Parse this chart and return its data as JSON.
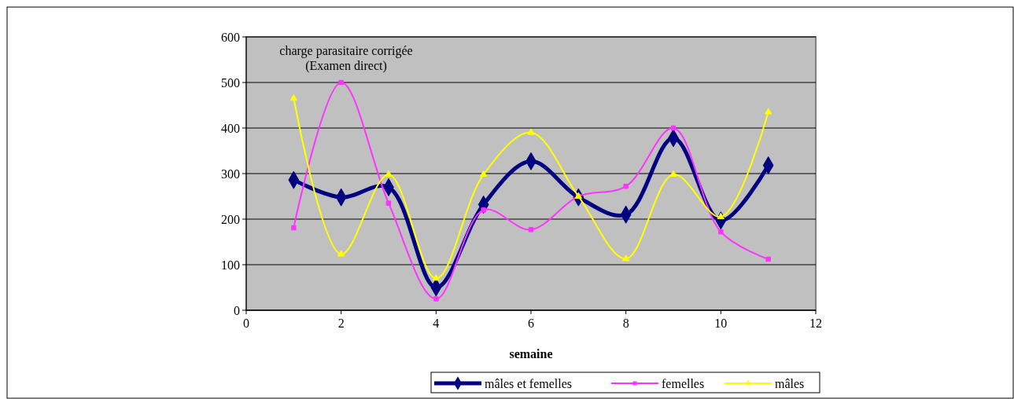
{
  "chart_data": {
    "type": "line",
    "title": "charge parasitaire corrigée\n(Examen direct)",
    "xlabel": "semaine",
    "x": [
      1,
      2,
      3,
      4,
      5,
      6,
      7,
      8,
      9,
      10,
      11
    ],
    "xlim": [
      0,
      12
    ],
    "xticks": [
      0,
      2,
      4,
      6,
      8,
      10,
      12
    ],
    "ylim": [
      0,
      600
    ],
    "yticks": [
      0,
      100,
      200,
      300,
      400,
      500,
      600
    ],
    "grid": "y",
    "legend": "bottom",
    "series": [
      {
        "name": "mâles et femelles",
        "color": "#000080",
        "marker": "diamond",
        "values": [
          286,
          248,
          270,
          50,
          232,
          327,
          248,
          210,
          378,
          197,
          318
        ]
      },
      {
        "name": "femelles",
        "color": "#ff33ff",
        "marker": "square",
        "values": [
          181,
          500,
          235,
          25,
          220,
          177,
          250,
          272,
          400,
          172,
          112
        ]
      },
      {
        "name": "mâles",
        "color": "#ffff00",
        "marker": "triangle",
        "values": [
          465,
          123,
          298,
          70,
          298,
          390,
          250,
          113,
          298,
          205,
          435
        ]
      }
    ]
  }
}
